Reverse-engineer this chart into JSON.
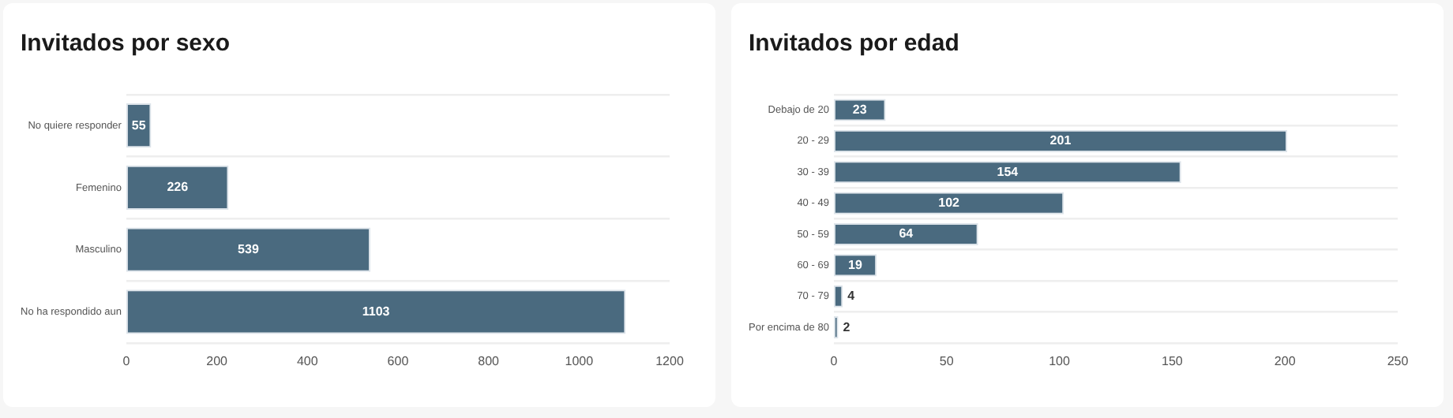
{
  "chart_data": [
    {
      "type": "bar",
      "orientation": "horizontal",
      "title": "Invitados por sexo",
      "categories": [
        "No quiere responder",
        "Femenino",
        "Masculino",
        "No ha respondido aun"
      ],
      "values": [
        55,
        226,
        539,
        1103
      ],
      "color": "#4a6a7f",
      "xlim": [
        0,
        1200
      ],
      "xticks": [
        0,
        200,
        400,
        600,
        800,
        1000,
        1200
      ],
      "grid": "y",
      "data_labels": true
    },
    {
      "type": "bar",
      "orientation": "horizontal",
      "title": "Invitados por edad",
      "categories": [
        "Debajo de 20",
        "20 - 29",
        "30 - 39",
        "40 - 49",
        "50 - 59",
        "60 - 69",
        "70 - 79",
        "Por encima de 80"
      ],
      "values": [
        23,
        201,
        154,
        102,
        64,
        19,
        4,
        2
      ],
      "color": "#4a6a7f",
      "xlim": [
        0,
        250
      ],
      "xticks": [
        0,
        50,
        100,
        150,
        200,
        250
      ],
      "grid": "y",
      "data_labels": true
    }
  ]
}
